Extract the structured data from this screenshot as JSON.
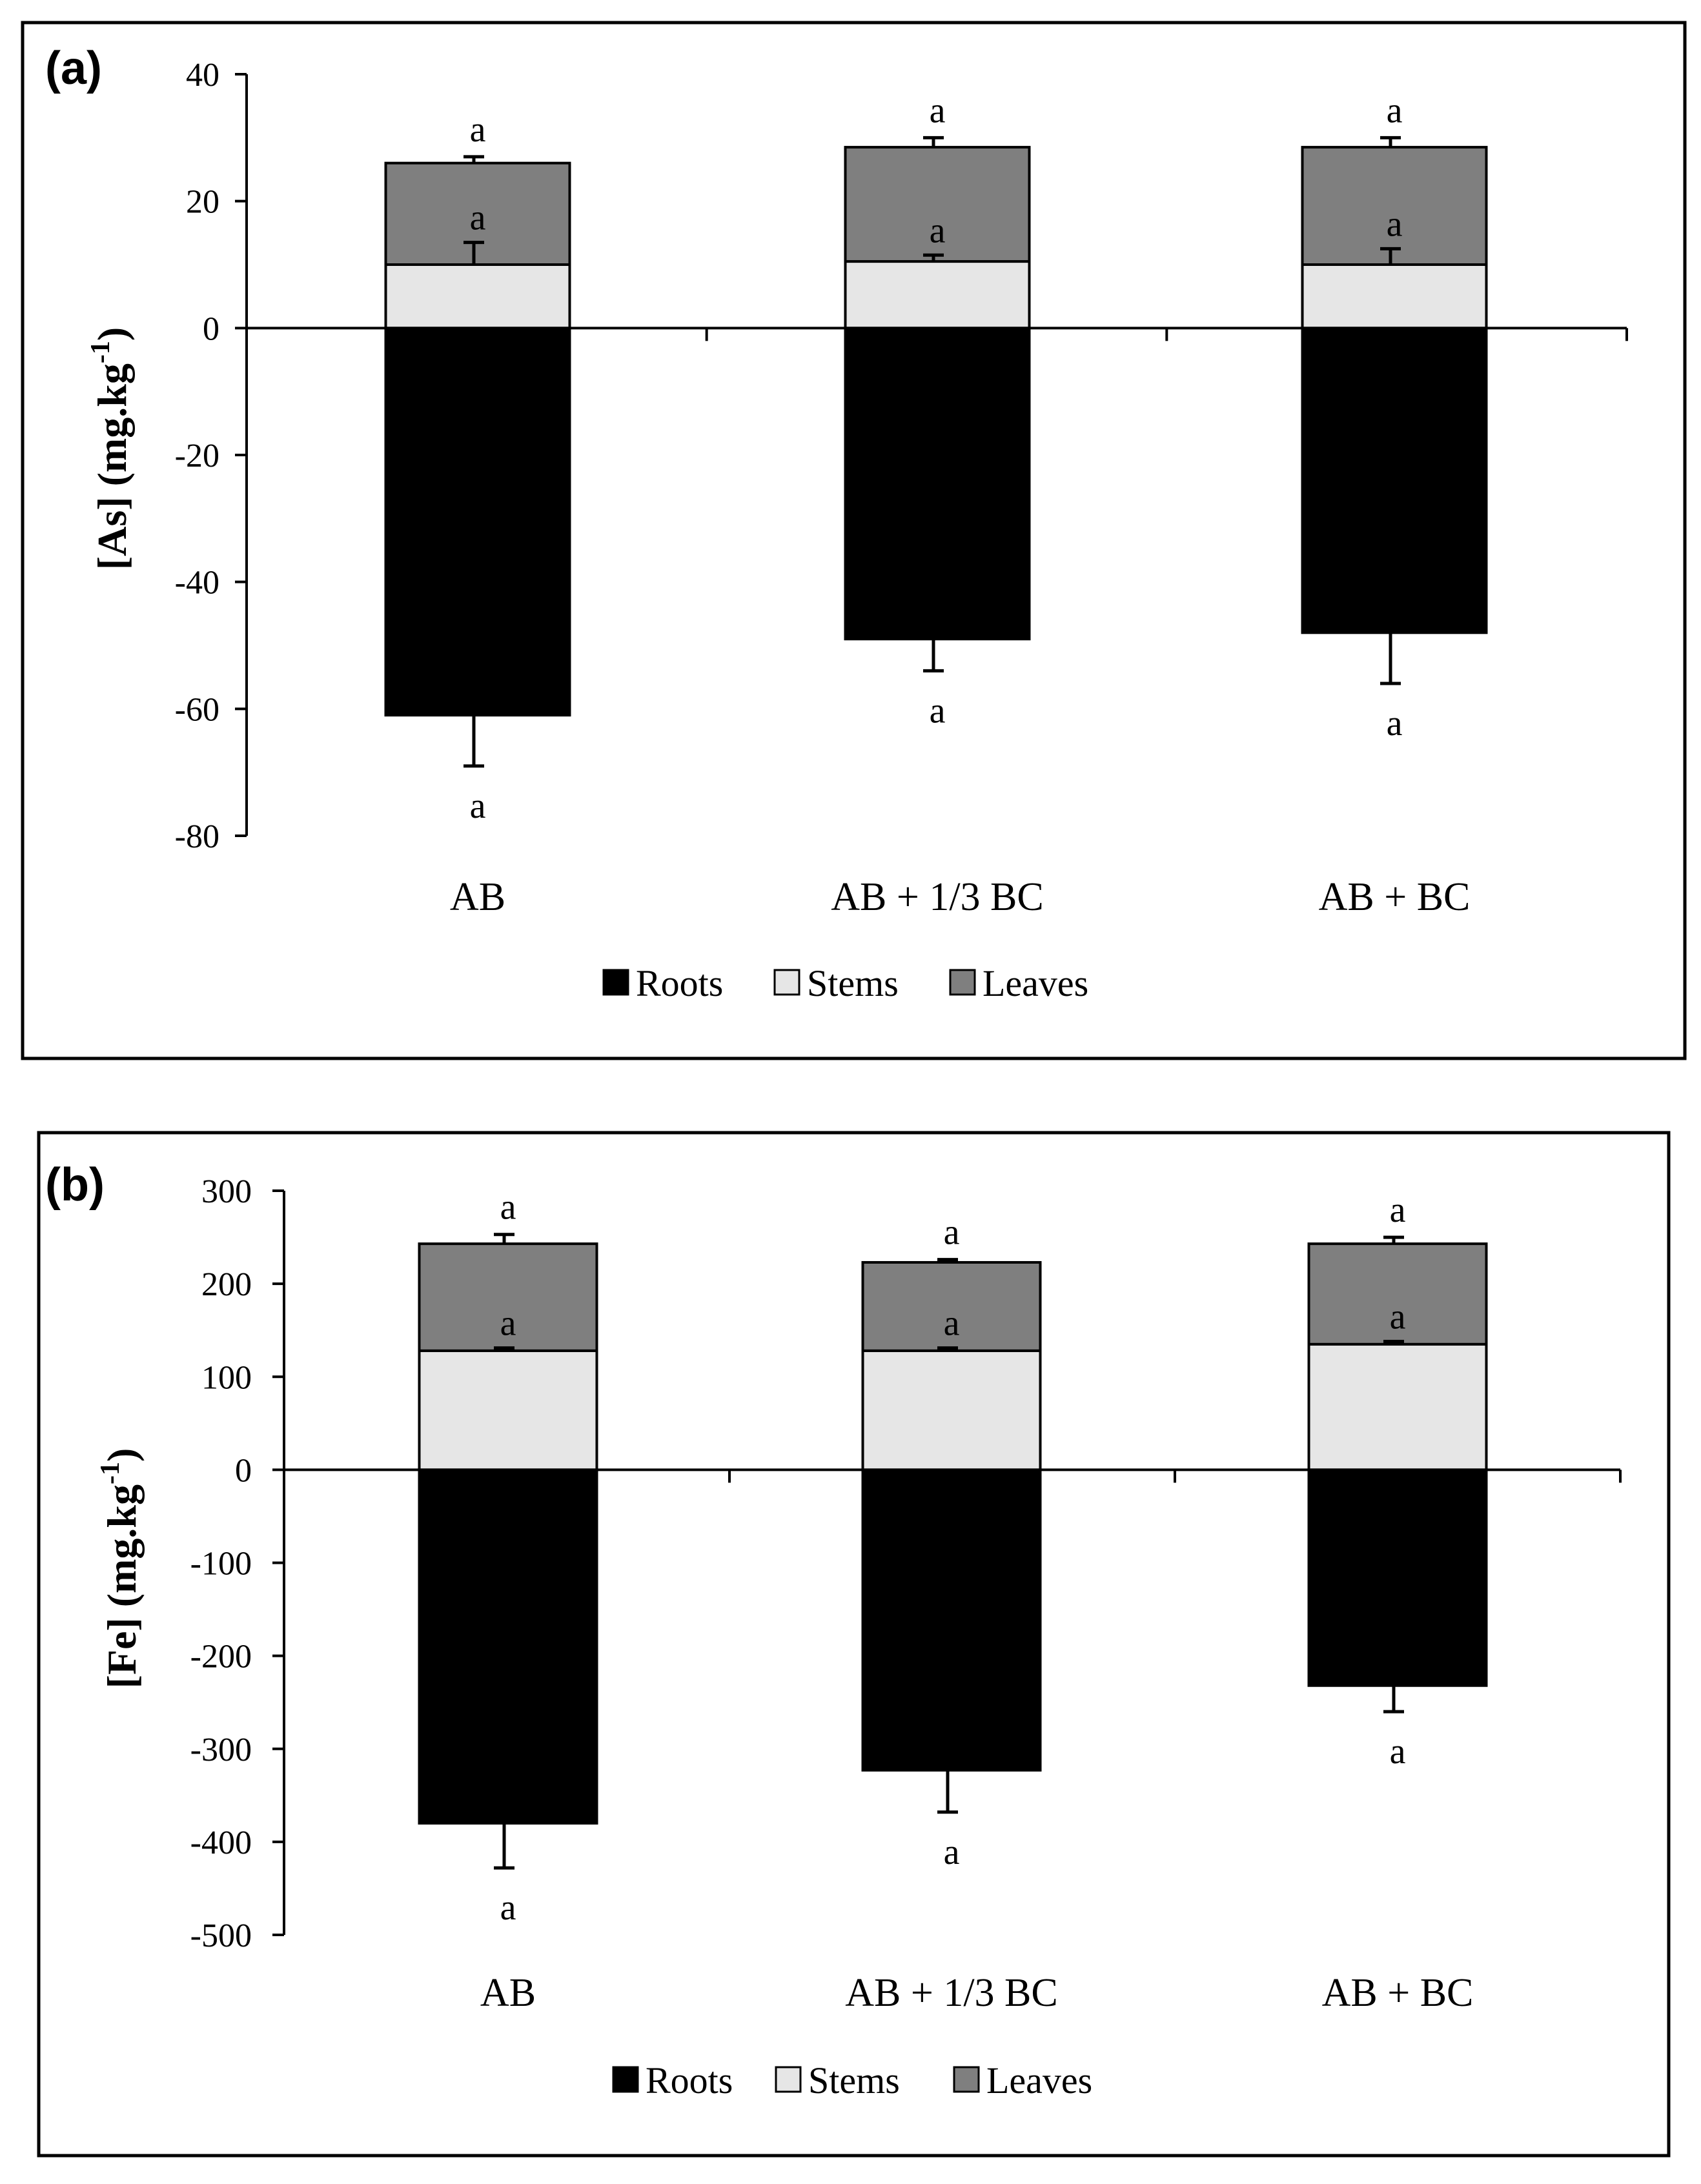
{
  "colors": {
    "roots": "#000000",
    "stems": "#e6e6e6",
    "leaves": "#7f7f7f",
    "frame": "#000000",
    "background": "#ffffff"
  },
  "chart_data": [
    {
      "panel_label": "(a)",
      "type": "bar",
      "stacked": "diverging",
      "ylabel_main": "[As]",
      "ylabel_unit": "(mg.kg",
      "ylabel_sup": "-1",
      "ylabel_close": ")",
      "ylim": [
        -80,
        40
      ],
      "yticks": [
        40,
        20,
        0,
        -20,
        -40,
        -60,
        -80
      ],
      "ytick_labels": [
        "40",
        "20",
        "0",
        "-20",
        "-40",
        "-60",
        "-80"
      ],
      "categories": [
        "AB",
        "AB + 1/3 BC",
        "AB + BC"
      ],
      "series": [
        {
          "name": "Roots",
          "values": [
            -61,
            -49,
            -48
          ],
          "errors": [
            8,
            5,
            8
          ],
          "letters": [
            "a",
            "a",
            "a"
          ]
        },
        {
          "name": "Stems",
          "values": [
            10,
            10.5,
            10
          ],
          "errors": [
            3.5,
            1,
            2.5
          ],
          "letters": [
            "a",
            "a",
            "a"
          ]
        },
        {
          "name": "Leaves",
          "values": [
            16,
            18,
            18.5
          ],
          "errors": [
            1,
            1.5,
            1.5
          ],
          "letters": [
            "a",
            "a",
            "a"
          ]
        }
      ],
      "legend": [
        "Roots",
        "Stems",
        "Leaves"
      ],
      "legend_position": "bottom",
      "grid": false
    },
    {
      "panel_label": "(b)",
      "type": "bar",
      "stacked": "diverging",
      "ylabel_main": "[Fe]",
      "ylabel_unit": "(mg.kg",
      "ylabel_sup": "-1",
      "ylabel_close": ")",
      "ylim": [
        -500,
        300
      ],
      "yticks": [
        300,
        200,
        100,
        0,
        -100,
        -200,
        -300,
        -400,
        -500
      ],
      "ytick_labels": [
        "300",
        "200",
        "100",
        "0",
        "-100",
        "-200",
        "-300",
        "-400",
        "-500"
      ],
      "categories": [
        "AB",
        "AB + 1/3 BC",
        "AB + BC"
      ],
      "series": [
        {
          "name": "Roots",
          "values": [
            -380,
            -323,
            -232
          ],
          "errors": [
            48,
            45,
            28
          ],
          "letters": [
            "a",
            "a",
            "a"
          ]
        },
        {
          "name": "Stems",
          "values": [
            128,
            128,
            135
          ],
          "errors": [
            3,
            3,
            3
          ],
          "letters": [
            "a",
            "a",
            "a"
          ]
        },
        {
          "name": "Leaves",
          "values": [
            115,
            95,
            108
          ],
          "errors": [
            10,
            3,
            7
          ],
          "letters": [
            "a",
            "a",
            "a"
          ]
        }
      ],
      "legend": [
        "Roots",
        "Stems",
        "Leaves"
      ],
      "legend_position": "bottom",
      "grid": false
    }
  ]
}
